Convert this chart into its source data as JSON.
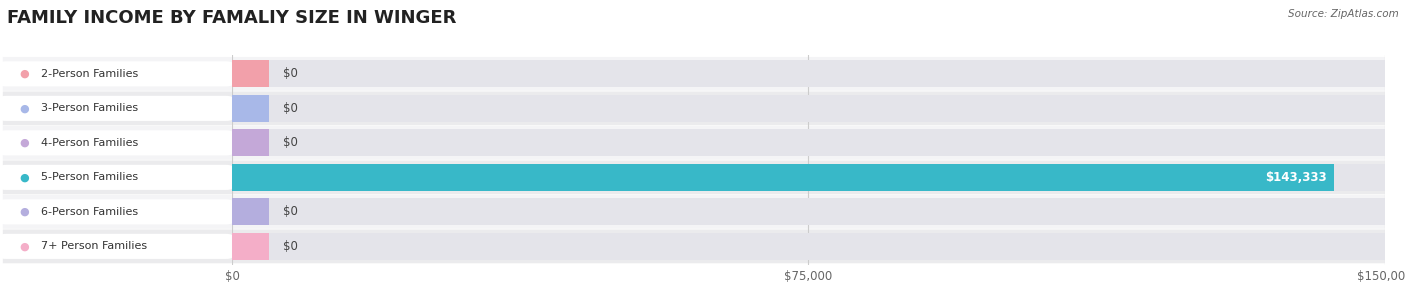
{
  "title": "FAMILY INCOME BY FAMALIY SIZE IN WINGER",
  "source": "Source: ZipAtlas.com",
  "categories": [
    "2-Person Families",
    "3-Person Families",
    "4-Person Families",
    "5-Person Families",
    "6-Person Families",
    "7+ Person Families"
  ],
  "values": [
    0,
    0,
    0,
    143333,
    0,
    0
  ],
  "bar_colors": [
    "#f2a0aa",
    "#a8b8e8",
    "#c4a8d8",
    "#38b8c8",
    "#b4aede",
    "#f4aec8"
  ],
  "xlim_data": 150000,
  "xticks": [
    0,
    75000,
    150000
  ],
  "xtick_labels": [
    "$0",
    "$75,000",
    "$150,000"
  ],
  "background_color": "#ffffff",
  "title_fontsize": 13,
  "row_bg_even": "#f4f4f6",
  "row_bg_odd": "#ebebed",
  "bar_bg_color": "#e4e4ea",
  "label_bg_color": "#ffffff",
  "value_color_nonzero": "#ffffff",
  "value_color_zero": "#444444",
  "source_color": "#666666",
  "title_color": "#222222",
  "grid_color": "#cccccc",
  "text_color": "#333333"
}
